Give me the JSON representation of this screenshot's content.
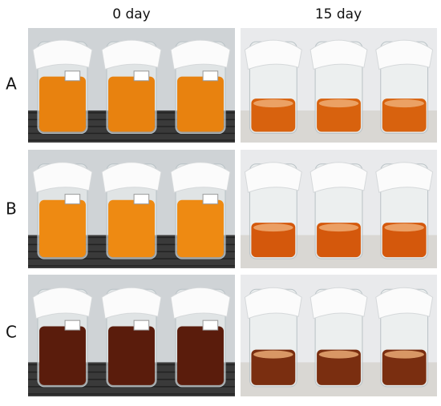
{
  "columns": [
    "0 day",
    "15 day"
  ],
  "rows": [
    "A",
    "B",
    "C"
  ]
}
